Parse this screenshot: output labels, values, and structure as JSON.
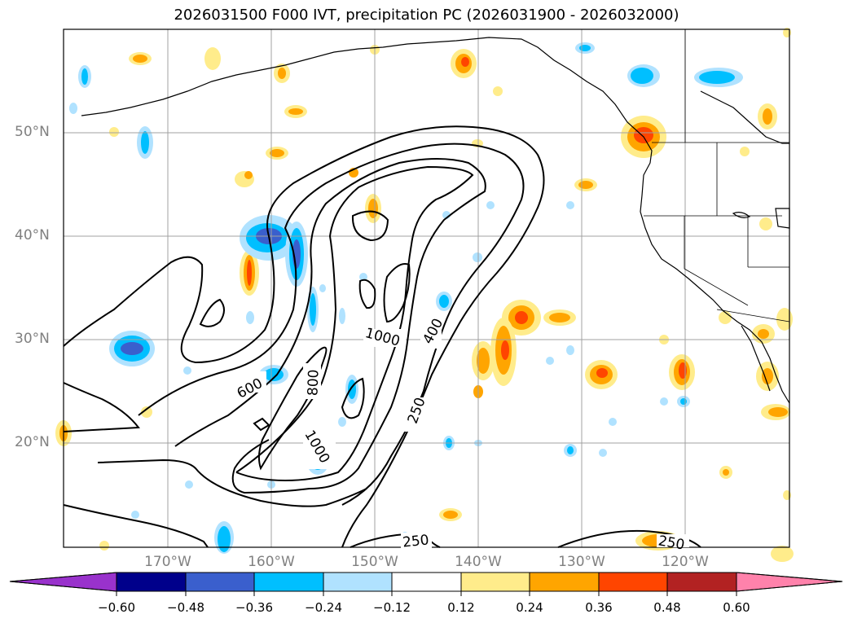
{
  "title": "2026031500 F000 IVT, precipitation PC (2026031900 - 2026032000)",
  "map": {
    "lat_labels": [
      "50°N",
      "40°N",
      "30°N",
      "20°N"
    ],
    "lon_labels": [
      "170°W",
      "160°W",
      "150°W",
      "140°W",
      "130°W",
      "120°W"
    ],
    "lat_range": [
      10,
      60
    ],
    "lon_range": [
      -180,
      -110
    ],
    "contour_labels": [
      "1000",
      "800",
      "600",
      "400",
      "250",
      "1000",
      "250",
      "250"
    ],
    "contour_levels": [
      250,
      400,
      600,
      800,
      1000
    ],
    "line_color": "#000000",
    "grid_color": "#a0a0a0"
  },
  "colorbar": {
    "ticks": [
      "−0.60",
      "−0.48",
      "−0.36",
      "−0.24",
      "−0.12",
      "0.12",
      "0.24",
      "0.36",
      "0.48",
      "0.60"
    ],
    "colors": [
      "#9932cc",
      "#00008b",
      "#3a5fcd",
      "#00bfff",
      "#b0e2ff",
      "#ffffff",
      "#ffec8b",
      "#ffa500",
      "#ff4500",
      "#b22222",
      "#ff82ab"
    ]
  }
}
